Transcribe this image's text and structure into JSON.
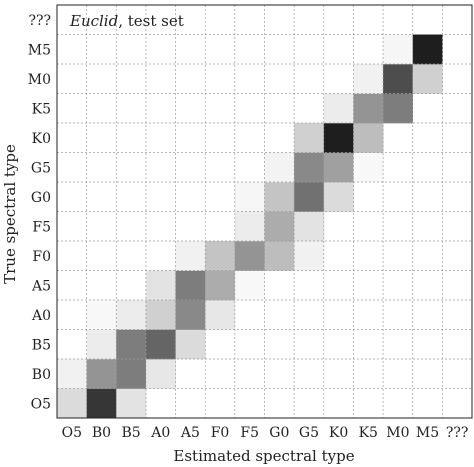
{
  "chart_data": {
    "type": "heatmap",
    "title_italic": "Euclid",
    "title_rest": ", test set",
    "xlabel": "Estimated spectral type",
    "ylabel": "True spectral type",
    "x_categories": [
      "O5",
      "B0",
      "B5",
      "A0",
      "A5",
      "F0",
      "F5",
      "G0",
      "G5",
      "K0",
      "K5",
      "M0",
      "M5",
      "???"
    ],
    "y_categories": [
      "O5",
      "B0",
      "B5",
      "A0",
      "A5",
      "F0",
      "F5",
      "G0",
      "G5",
      "K0",
      "K5",
      "M0",
      "M5",
      "???"
    ],
    "grid": true,
    "colormap": "greys",
    "value_range": [
      0,
      1
    ],
    "cells": [
      {
        "x": "O5",
        "y": "O5",
        "v": 0.15
      },
      {
        "x": "B0",
        "y": "O5",
        "v": 0.85
      },
      {
        "x": "B5",
        "y": "O5",
        "v": 0.12
      },
      {
        "x": "O5",
        "y": "B0",
        "v": 0.06
      },
      {
        "x": "B0",
        "y": "B0",
        "v": 0.45
      },
      {
        "x": "B5",
        "y": "B0",
        "v": 0.55
      },
      {
        "x": "A0",
        "y": "B0",
        "v": 0.1
      },
      {
        "x": "B0",
        "y": "B5",
        "v": 0.08
      },
      {
        "x": "B5",
        "y": "B5",
        "v": 0.55
      },
      {
        "x": "A0",
        "y": "B5",
        "v": 0.65
      },
      {
        "x": "A5",
        "y": "B5",
        "v": 0.15
      },
      {
        "x": "B0",
        "y": "A0",
        "v": 0.03
      },
      {
        "x": "B5",
        "y": "A0",
        "v": 0.08
      },
      {
        "x": "A0",
        "y": "A0",
        "v": 0.2
      },
      {
        "x": "A5",
        "y": "A0",
        "v": 0.5
      },
      {
        "x": "F0",
        "y": "A0",
        "v": 0.1
      },
      {
        "x": "A0",
        "y": "A5",
        "v": 0.12
      },
      {
        "x": "A5",
        "y": "A5",
        "v": 0.55
      },
      {
        "x": "F0",
        "y": "A5",
        "v": 0.35
      },
      {
        "x": "F5",
        "y": "A5",
        "v": 0.03
      },
      {
        "x": "A5",
        "y": "F0",
        "v": 0.06
      },
      {
        "x": "F0",
        "y": "F0",
        "v": 0.25
      },
      {
        "x": "F5",
        "y": "F0",
        "v": 0.45
      },
      {
        "x": "G0",
        "y": "F0",
        "v": 0.28
      },
      {
        "x": "G5",
        "y": "F0",
        "v": 0.06
      },
      {
        "x": "F5",
        "y": "F5",
        "v": 0.08
      },
      {
        "x": "G0",
        "y": "F5",
        "v": 0.35
      },
      {
        "x": "G5",
        "y": "F5",
        "v": 0.12
      },
      {
        "x": "F5",
        "y": "G0",
        "v": 0.04
      },
      {
        "x": "G0",
        "y": "G0",
        "v": 0.25
      },
      {
        "x": "G5",
        "y": "G0",
        "v": 0.6
      },
      {
        "x": "K0",
        "y": "G0",
        "v": 0.15
      },
      {
        "x": "G0",
        "y": "G5",
        "v": 0.05
      },
      {
        "x": "G5",
        "y": "G5",
        "v": 0.5
      },
      {
        "x": "K0",
        "y": "G5",
        "v": 0.4
      },
      {
        "x": "K5",
        "y": "G5",
        "v": 0.03
      },
      {
        "x": "G5",
        "y": "K0",
        "v": 0.2
      },
      {
        "x": "K0",
        "y": "K0",
        "v": 0.95
      },
      {
        "x": "K5",
        "y": "K0",
        "v": 0.28
      },
      {
        "x": "K0",
        "y": "K5",
        "v": 0.08
      },
      {
        "x": "K5",
        "y": "K5",
        "v": 0.45
      },
      {
        "x": "M0",
        "y": "K5",
        "v": 0.55
      },
      {
        "x": "K5",
        "y": "M0",
        "v": 0.06
      },
      {
        "x": "M0",
        "y": "M0",
        "v": 0.75
      },
      {
        "x": "M5",
        "y": "M0",
        "v": 0.2
      },
      {
        "x": "M0",
        "y": "M5",
        "v": 0.04
      },
      {
        "x": "M5",
        "y": "M5",
        "v": 0.95
      }
    ]
  }
}
